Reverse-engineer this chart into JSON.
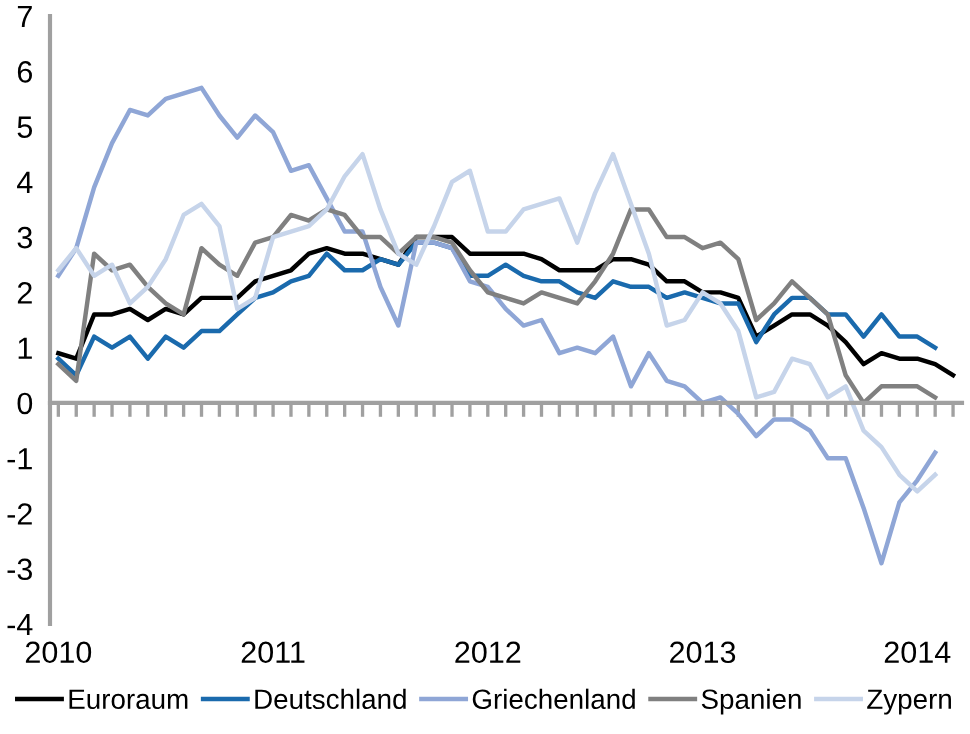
{
  "chart_data": {
    "type": "line",
    "legend": "bottom",
    "marker": "none",
    "line_style": "solid",
    "x": [
      "2010-01",
      "2010-02",
      "2010-03",
      "2010-04",
      "2010-05",
      "2010-06",
      "2010-07",
      "2010-08",
      "2010-09",
      "2010-10",
      "2010-11",
      "2010-12",
      "2011-01",
      "2011-02",
      "2011-03",
      "2011-04",
      "2011-05",
      "2011-06",
      "2011-07",
      "2011-08",
      "2011-09",
      "2011-10",
      "2011-11",
      "2011-12",
      "2012-01",
      "2012-02",
      "2012-03",
      "2012-04",
      "2012-05",
      "2012-06",
      "2012-07",
      "2012-08",
      "2012-09",
      "2012-10",
      "2012-11",
      "2012-12",
      "2013-01",
      "2013-02",
      "2013-03",
      "2013-04",
      "2013-05",
      "2013-06",
      "2013-07",
      "2013-08",
      "2013-09",
      "2013-10",
      "2013-11",
      "2013-12",
      "2014-01",
      "2014-02",
      "2014-03"
    ],
    "xlim": [
      "2009-12-17",
      "2014-03-16"
    ],
    "xticks": [
      {
        "value": "2010-01",
        "label": "2010"
      },
      {
        "value": "2011-01",
        "label": "2011"
      },
      {
        "value": "2012-01",
        "label": "2012"
      },
      {
        "value": "2013-01",
        "label": "2013"
      },
      {
        "value": "2014-01",
        "label": "2014"
      }
    ],
    "ylim": [
      -4,
      7
    ],
    "yticks": [
      -4,
      -3,
      -2,
      -1,
      0,
      1,
      2,
      3,
      4,
      5,
      6,
      7
    ],
    "series": [
      {
        "name": "Euroraum",
        "color": "#000000",
        "values": [
          0.9,
          0.8,
          1.6,
          1.6,
          1.7,
          1.5,
          1.7,
          1.6,
          1.9,
          1.9,
          1.9,
          2.2,
          2.3,
          2.4,
          2.7,
          2.8,
          2.7,
          2.7,
          2.6,
          2.5,
          3.0,
          3.0,
          3.0,
          2.7,
          2.7,
          2.7,
          2.7,
          2.6,
          2.4,
          2.4,
          2.4,
          2.6,
          2.6,
          2.5,
          2.2,
          2.2,
          2.0,
          2.0,
          1.9,
          1.2,
          1.4,
          1.6,
          1.6,
          1.4,
          1.1,
          0.7,
          0.9,
          0.8,
          0.8,
          0.7,
          0.5
        ]
      },
      {
        "name": "Deutschland",
        "color": "#1a6aad",
        "values": [
          0.8,
          0.5,
          1.2,
          1.0,
          1.2,
          0.8,
          1.2,
          1.0,
          1.3,
          1.3,
          1.6,
          1.9,
          2.0,
          2.2,
          2.3,
          2.7,
          2.4,
          2.4,
          2.6,
          2.5,
          2.9,
          2.9,
          2.8,
          2.3,
          2.3,
          2.5,
          2.3,
          2.2,
          2.2,
          2.0,
          1.9,
          2.2,
          2.1,
          2.1,
          1.9,
          2.0,
          1.9,
          1.8,
          1.8,
          1.1,
          1.6,
          1.9,
          1.9,
          1.6,
          1.6,
          1.2,
          1.6,
          1.2,
          1.2,
          1.0,
          null
        ]
      },
      {
        "name": "Griechenland",
        "color": "#8fa6d6",
        "values": [
          2.3,
          2.8,
          3.9,
          4.7,
          5.3,
          5.2,
          5.5,
          5.6,
          5.7,
          5.2,
          4.8,
          5.2,
          4.9,
          4.2,
          4.3,
          3.7,
          3.1,
          3.1,
          2.1,
          1.4,
          2.9,
          2.9,
          2.8,
          2.2,
          2.1,
          1.7,
          1.4,
          1.5,
          0.9,
          1.0,
          0.9,
          1.2,
          0.3,
          0.9,
          0.4,
          0.3,
          0.0,
          0.1,
          -0.2,
          -0.6,
          -0.3,
          -0.3,
          -0.5,
          -1.0,
          -1.0,
          -1.9,
          -2.9,
          -1.8,
          -1.4,
          -0.9,
          null
        ]
      },
      {
        "name": "Spanien",
        "color": "#808080",
        "values": [
          0.7,
          0.4,
          2.7,
          2.4,
          2.5,
          2.1,
          1.8,
          1.6,
          2.8,
          2.5,
          2.3,
          2.9,
          3.0,
          3.4,
          3.3,
          3.5,
          3.4,
          3.0,
          3.0,
          2.7,
          3.0,
          3.0,
          2.9,
          2.4,
          2.0,
          1.9,
          1.8,
          2.0,
          1.9,
          1.8,
          2.2,
          2.7,
          3.5,
          3.5,
          3.0,
          3.0,
          2.8,
          2.9,
          2.6,
          1.5,
          1.8,
          2.2,
          1.9,
          1.6,
          0.5,
          0.0,
          0.3,
          0.3,
          0.3,
          0.1,
          null
        ]
      },
      {
        "name": "Zypern",
        "color": "#c6d4ea",
        "values": [
          2.4,
          2.8,
          2.3,
          2.5,
          1.8,
          2.1,
          2.6,
          3.4,
          3.6,
          3.2,
          1.7,
          1.9,
          3.0,
          3.1,
          3.2,
          3.5,
          4.1,
          4.5,
          3.5,
          2.7,
          2.5,
          3.2,
          4.0,
          4.2,
          3.1,
          3.1,
          3.5,
          3.6,
          3.7,
          2.9,
          3.8,
          4.5,
          3.6,
          2.7,
          1.4,
          1.5,
          2.0,
          1.8,
          1.3,
          0.1,
          0.2,
          0.8,
          0.7,
          0.1,
          0.3,
          -0.5,
          -0.8,
          -1.3,
          -1.6,
          -1.3,
          null
        ]
      }
    ]
  }
}
